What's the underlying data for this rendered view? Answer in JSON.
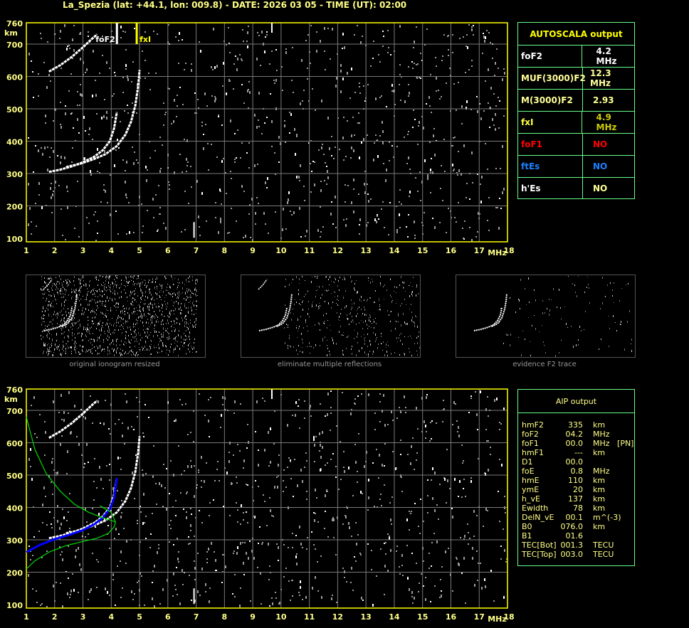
{
  "title": "La_Spezia (lat: +44.1, lon: 009.8) - DATE: 2026 03 05 - TIME (UT): 02:00",
  "colors": {
    "axis": "#ffff00",
    "grid": "#7a7a7a",
    "noise": "#9a9a9a",
    "trace": "#ffffff",
    "profile_bottom": "#0000ff",
    "profile_model": "#00dd00",
    "panel_border": "#66ff88"
  },
  "chart_data": [
    {
      "type": "scatter",
      "name_hint": "ionogram-top",
      "xlabel": "MHz",
      "ylabel": "km",
      "xlim": [
        1,
        18
      ],
      "ylim": [
        100,
        760
      ],
      "xticks": [
        "1",
        "2",
        "3",
        "4",
        "5",
        "6",
        "7",
        "8",
        "9",
        "10",
        "11",
        "12",
        "13",
        "14",
        "15",
        "16",
        "17",
        "18"
      ],
      "yticks": [
        "100",
        "200",
        "300",
        "400",
        "500",
        "600",
        "700",
        "760"
      ],
      "grid": true,
      "markers": [
        {
          "label": "foF2",
          "x": 4.2,
          "color": "#ffffff"
        },
        {
          "label": "fxI",
          "x": 4.9,
          "color": "#ffff00"
        }
      ],
      "traces": [
        {
          "x": [
            1.8,
            2.2,
            2.6,
            3.0,
            3.4,
            3.7,
            3.95,
            4.1,
            4.2
          ],
          "y": [
            305,
            312,
            322,
            335,
            352,
            372,
            400,
            440,
            490
          ]
        },
        {
          "x": [
            2.4,
            2.9,
            3.4,
            3.8,
            4.2,
            4.5,
            4.7,
            4.85,
            4.95,
            5.0
          ],
          "y": [
            320,
            330,
            345,
            360,
            385,
            420,
            460,
            510,
            570,
            620
          ]
        },
        {
          "x": [
            1.8,
            2.2,
            2.6,
            3.0,
            3.3,
            3.5
          ],
          "y": [
            615,
            635,
            660,
            690,
            715,
            730
          ]
        }
      ]
    },
    {
      "type": "line",
      "name_hint": "ionogram-bottom",
      "xlabel": "MHz",
      "ylabel": "km",
      "xlim": [
        1,
        18
      ],
      "ylim": [
        100,
        760
      ],
      "xticks": [
        "1",
        "2",
        "3",
        "4",
        "5",
        "6",
        "7",
        "8",
        "9",
        "10",
        "11",
        "12",
        "13",
        "14",
        "15",
        "16",
        "17",
        "18"
      ],
      "yticks": [
        "100",
        "200",
        "300",
        "400",
        "500",
        "600",
        "700",
        "760"
      ],
      "grid": true,
      "series": [
        {
          "role": "bottomside-profile",
          "color": "#0000ff",
          "x": [
            1.0,
            1.5,
            2.0,
            2.5,
            3.0,
            3.4,
            3.7,
            3.95,
            4.1,
            4.2
          ],
          "y": [
            262,
            285,
            302,
            315,
            330,
            348,
            368,
            395,
            430,
            490
          ]
        },
        {
          "role": "model-upper",
          "color": "#00dd00",
          "x": [
            1.0,
            1.3,
            1.7,
            2.2,
            2.7,
            3.2,
            3.7,
            4.0,
            4.15
          ],
          "y": [
            680,
            580,
            505,
            450,
            410,
            385,
            368,
            360,
            355
          ]
        },
        {
          "role": "model-lower",
          "color": "#00dd00",
          "x": [
            1.0,
            1.3,
            1.8,
            2.4,
            3.0,
            3.5,
            3.9,
            4.1,
            4.15,
            4.0,
            3.6
          ],
          "y": [
            210,
            235,
            262,
            282,
            295,
            305,
            320,
            340,
            355,
            385,
            405
          ]
        }
      ]
    }
  ],
  "autoscala": {
    "title": "AUTOSCALA output",
    "rows": [
      {
        "label": "foF2",
        "value": "4.2 MHz",
        "label_color": "#ffffff",
        "value_color": "#ffffff"
      },
      {
        "label": "MUF(3000)F2",
        "value": "12.3 MHz",
        "label_color": "#ffff99",
        "value_color": "#ffff99"
      },
      {
        "label": "M(3000)F2",
        "value": "2.93",
        "label_color": "#ffff99",
        "value_color": "#ffff99"
      },
      {
        "label": "fxI",
        "value": "4.9 MHz",
        "label_color": "#ffff44",
        "value_color": "#cccc00"
      },
      {
        "label": "foF1",
        "value": "NO",
        "label_color": "#ff0000",
        "value_color": "#ff0000"
      },
      {
        "label": "ftEs",
        "value": "NO",
        "label_color": "#1e7fff",
        "value_color": "#1e7fff"
      },
      {
        "label": "h'Es",
        "value": "NO",
        "label_color": "#ffffff",
        "value_color": "#ffff99"
      }
    ]
  },
  "aip": {
    "title": "AIP output",
    "rows": [
      [
        "hmF2",
        "335",
        "km"
      ],
      [
        "foF2",
        "04.2",
        "MHz"
      ],
      [
        "foF1",
        "00.0",
        "MHz   [PN]"
      ],
      [
        "hmF1",
        "---",
        "km"
      ],
      [
        "D1",
        "00.0",
        ""
      ],
      [
        "foE",
        "0.8",
        "MHz"
      ],
      [
        "hmE",
        "110",
        "km"
      ],
      [
        "ymE",
        "20",
        "km"
      ],
      [
        "h_vE",
        "137",
        "km"
      ],
      [
        "Ewidth",
        "78",
        "km"
      ],
      [
        "DelN_vE",
        "00.1",
        "m^(-3)"
      ],
      [
        "B0",
        "076.0",
        "km"
      ],
      [
        "B1",
        "01.6",
        ""
      ],
      [
        "TEC[Bot]",
        "001.3",
        "TECU"
      ],
      [
        "TEC[Top]",
        "003.0",
        "TECU"
      ]
    ]
  },
  "thumbnails": [
    {
      "caption": "original ionogram resized"
    },
    {
      "caption": "eliminate multiple reflections"
    },
    {
      "caption": "evidence F2 trace"
    }
  ]
}
